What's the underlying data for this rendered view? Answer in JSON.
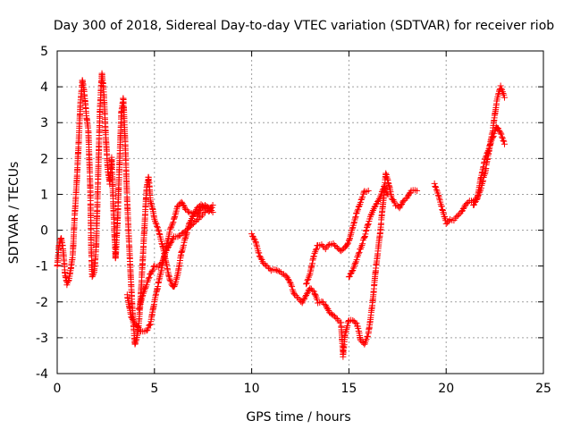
{
  "chart_data": {
    "type": "scatter",
    "title": "Day 300 of 2018, Sidereal Day-to-day VTEC variation (SDTVAR) for receiver riob",
    "xlabel": "GPS time / hours",
    "ylabel": "SDTVAR / TECUs",
    "xlim": [
      0,
      25
    ],
    "ylim": [
      -4,
      5
    ],
    "xticks": [
      0,
      5,
      10,
      15,
      20,
      25
    ],
    "yticks": [
      -4,
      -3,
      -2,
      -1,
      0,
      1,
      2,
      3,
      4,
      5
    ],
    "grid": true,
    "marker": "+",
    "series": [
      {
        "name": "SDTVAR",
        "color": "#ff0000",
        "segments": [
          [
            [
              0.0,
              -1.0
            ],
            [
              0.1,
              -0.4
            ],
            [
              0.2,
              -0.2
            ],
            [
              0.3,
              -0.5
            ],
            [
              0.4,
              -1.2
            ],
            [
              0.5,
              -1.5
            ],
            [
              0.6,
              -1.4
            ],
            [
              0.7,
              -1.1
            ],
            [
              0.8,
              -0.7
            ],
            [
              0.9,
              0.4
            ],
            [
              1.0,
              1.3
            ],
            [
              1.1,
              2.4
            ],
            [
              1.2,
              3.6
            ],
            [
              1.3,
              4.2
            ],
            [
              1.4,
              3.8
            ],
            [
              1.5,
              3.2
            ],
            [
              1.6,
              2.8
            ],
            [
              1.7,
              1.2
            ],
            [
              1.75,
              -0.5
            ],
            [
              1.8,
              -1.3
            ],
            [
              1.9,
              -1.2
            ],
            [
              2.0,
              -0.5
            ],
            [
              2.1,
              1.4
            ],
            [
              2.2,
              3.4
            ],
            [
              2.3,
              4.4
            ],
            [
              2.4,
              3.8
            ],
            [
              2.5,
              2.6
            ],
            [
              2.6,
              1.7
            ],
            [
              2.7,
              1.3
            ],
            [
              2.8,
              2.0
            ],
            [
              2.9,
              0.5
            ],
            [
              3.0,
              -0.8
            ],
            [
              3.1,
              0.2
            ],
            [
              3.2,
              1.8
            ],
            [
              3.3,
              3.3
            ],
            [
              3.4,
              3.7
            ],
            [
              3.5,
              2.4
            ],
            [
              3.6,
              0.8
            ],
            [
              3.7,
              -0.4
            ],
            [
              3.8,
              -1.5
            ],
            [
              3.9,
              -2.5
            ],
            [
              4.0,
              -3.2
            ],
            [
              4.1,
              -3.0
            ],
            [
              4.2,
              -2.6
            ],
            [
              4.3,
              -1.8
            ],
            [
              4.4,
              -0.8
            ],
            [
              4.5,
              0.2
            ],
            [
              4.6,
              1.2
            ],
            [
              4.7,
              1.5
            ],
            [
              4.8,
              0.8
            ],
            [
              4.9,
              0.6
            ],
            [
              5.0,
              0.3
            ],
            [
              5.2,
              0.0
            ],
            [
              5.4,
              -0.4
            ],
            [
              5.6,
              -0.9
            ],
            [
              5.8,
              -1.4
            ],
            [
              6.0,
              -1.6
            ],
            [
              6.2,
              -1.2
            ],
            [
              6.4,
              -0.6
            ],
            [
              6.6,
              -0.2
            ],
            [
              6.8,
              0.2
            ],
            [
              7.0,
              0.4
            ],
            [
              7.2,
              0.6
            ],
            [
              7.4,
              0.7
            ],
            [
              7.6,
              0.6
            ],
            [
              7.8,
              0.5
            ],
            [
              8.0,
              0.7
            ]
          ],
          [
            [
              3.6,
              -1.8
            ],
            [
              3.8,
              -2.4
            ],
            [
              4.0,
              -2.6
            ],
            [
              4.3,
              -2.8
            ],
            [
              4.6,
              -2.8
            ],
            [
              4.8,
              -2.6
            ],
            [
              5.0,
              -2.0
            ],
            [
              5.2,
              -1.5
            ],
            [
              5.4,
              -1.0
            ],
            [
              5.6,
              -0.5
            ],
            [
              5.8,
              0.0
            ],
            [
              6.0,
              0.3
            ],
            [
              6.2,
              0.7
            ],
            [
              6.4,
              0.8
            ],
            [
              6.6,
              0.6
            ],
            [
              6.8,
              0.5
            ],
            [
              7.0,
              0.5
            ],
            [
              7.2,
              0.4
            ],
            [
              7.4,
              0.6
            ],
            [
              7.6,
              0.7
            ],
            [
              7.8,
              0.6
            ],
            [
              8.0,
              0.5
            ]
          ],
          [
            [
              4.2,
              -2.2
            ],
            [
              4.4,
              -1.8
            ],
            [
              4.6,
              -1.5
            ],
            [
              4.8,
              -1.2
            ],
            [
              5.0,
              -1.0
            ],
            [
              5.2,
              -1.0
            ],
            [
              5.4,
              -0.9
            ],
            [
              5.6,
              -0.6
            ],
            [
              5.8,
              -0.4
            ],
            [
              6.0,
              -0.2
            ],
            [
              6.2,
              -0.2
            ],
            [
              6.4,
              -0.1
            ],
            [
              6.6,
              0.0
            ],
            [
              6.8,
              0.1
            ],
            [
              7.0,
              0.2
            ],
            [
              7.2,
              0.3
            ],
            [
              7.4,
              0.4
            ],
            [
              7.6,
              0.5
            ]
          ],
          [
            [
              10.0,
              -0.1
            ],
            [
              10.2,
              -0.3
            ],
            [
              10.4,
              -0.7
            ],
            [
              10.6,
              -0.9
            ],
            [
              10.8,
              -1.0
            ],
            [
              11.0,
              -1.1
            ],
            [
              11.2,
              -1.1
            ],
            [
              11.5,
              -1.2
            ],
            [
              11.8,
              -1.3
            ],
            [
              12.0,
              -1.5
            ],
            [
              12.2,
              -1.8
            ],
            [
              12.4,
              -1.9
            ],
            [
              12.6,
              -2.0
            ],
            [
              12.8,
              -1.8
            ],
            [
              13.0,
              -1.6
            ],
            [
              13.2,
              -1.7
            ],
            [
              13.4,
              -2.0
            ],
            [
              13.6,
              -2.0
            ],
            [
              13.8,
              -2.1
            ],
            [
              14.0,
              -2.3
            ],
            [
              14.2,
              -2.4
            ],
            [
              14.4,
              -2.5
            ],
            [
              14.6,
              -2.6
            ],
            [
              14.7,
              -3.5
            ],
            [
              14.8,
              -2.9
            ],
            [
              15.0,
              -2.5
            ],
            [
              15.2,
              -2.5
            ],
            [
              15.4,
              -2.6
            ],
            [
              15.5,
              -2.8
            ],
            [
              15.6,
              -3.1
            ],
            [
              15.8,
              -3.2
            ],
            [
              16.0,
              -2.9
            ],
            [
              16.2,
              -2.1
            ],
            [
              16.4,
              -1.0
            ],
            [
              16.6,
              -0.1
            ],
            [
              16.8,
              1.0
            ],
            [
              16.9,
              1.6
            ],
            [
              17.0,
              1.4
            ],
            [
              17.2,
              0.9
            ],
            [
              17.4,
              0.7
            ],
            [
              17.6,
              0.6
            ],
            [
              17.8,
              0.8
            ],
            [
              18.0,
              0.9
            ],
            [
              18.2,
              1.1
            ],
            [
              18.5,
              1.1
            ]
          ],
          [
            [
              12.8,
              -1.5
            ],
            [
              13.0,
              -1.2
            ],
            [
              13.2,
              -0.7
            ],
            [
              13.4,
              -0.4
            ],
            [
              13.6,
              -0.4
            ],
            [
              13.8,
              -0.5
            ],
            [
              14.0,
              -0.4
            ],
            [
              14.2,
              -0.4
            ],
            [
              14.4,
              -0.5
            ],
            [
              14.6,
              -0.6
            ],
            [
              14.8,
              -0.5
            ],
            [
              15.0,
              -0.3
            ],
            [
              15.2,
              0.1
            ],
            [
              15.4,
              0.5
            ],
            [
              15.6,
              0.8
            ],
            [
              15.8,
              1.1
            ],
            [
              16.0,
              1.1
            ]
          ],
          [
            [
              15.0,
              -1.3
            ],
            [
              15.2,
              -1.1
            ],
            [
              15.4,
              -0.8
            ],
            [
              15.6,
              -0.5
            ],
            [
              15.8,
              -0.2
            ],
            [
              16.0,
              0.2
            ],
            [
              16.2,
              0.5
            ],
            [
              16.4,
              0.7
            ],
            [
              16.6,
              0.9
            ],
            [
              16.8,
              1.2
            ],
            [
              17.0,
              1.0
            ]
          ],
          [
            [
              19.4,
              1.3
            ],
            [
              19.6,
              1.0
            ],
            [
              19.8,
              0.6
            ],
            [
              20.0,
              0.2
            ],
            [
              20.2,
              0.3
            ],
            [
              20.4,
              0.3
            ],
            [
              20.6,
              0.4
            ],
            [
              20.8,
              0.5
            ],
            [
              21.0,
              0.7
            ],
            [
              21.2,
              0.8
            ],
            [
              21.4,
              0.8
            ],
            [
              21.6,
              0.9
            ],
            [
              21.8,
              1.5
            ],
            [
              22.0,
              2.0
            ],
            [
              22.2,
              2.3
            ],
            [
              22.4,
              2.6
            ],
            [
              22.6,
              2.9
            ],
            [
              22.8,
              2.7
            ],
            [
              23.0,
              2.4
            ]
          ],
          [
            [
              21.4,
              0.7
            ],
            [
              21.6,
              0.9
            ],
            [
              21.8,
              1.2
            ],
            [
              22.0,
              1.6
            ],
            [
              22.2,
              2.2
            ],
            [
              22.4,
              2.8
            ],
            [
              22.6,
              3.6
            ],
            [
              22.8,
              4.0
            ],
            [
              23.0,
              3.7
            ]
          ]
        ]
      }
    ]
  }
}
